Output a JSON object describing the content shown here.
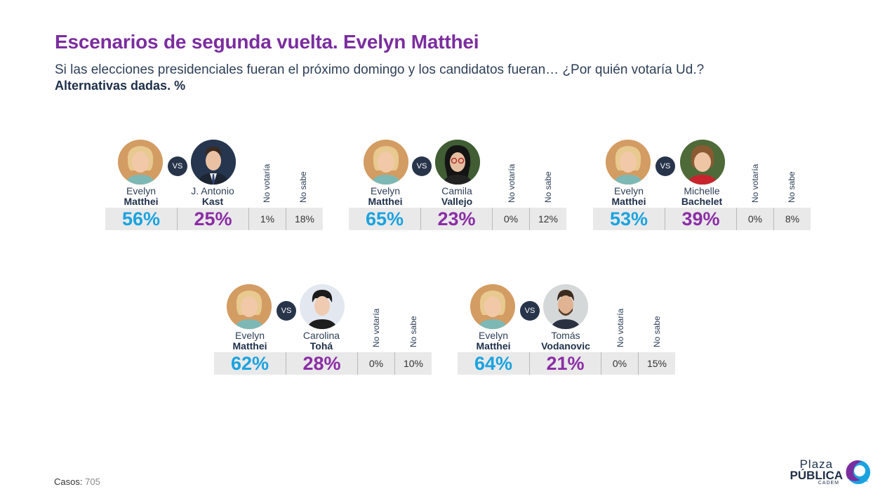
{
  "header": {
    "title": "Escenarios de segunda vuelta. Evelyn Matthei",
    "subtitle": "Si las elecciones presidenciales fueran el próximo domingo y los candidatos fueran… ¿Por quién votaría Ud.?",
    "subtitle2": "Alternativas dadas. %"
  },
  "labels": {
    "vs": "VS",
    "no_votaria": "No votaría",
    "no_sabe": "No sabe"
  },
  "footer": {
    "casos_label": "Casos",
    "casos_sep": ":",
    "casos_value": "705"
  },
  "logo": {
    "line1": "Plaza",
    "line2": "PÚBLICA",
    "line3": "CADEM"
  },
  "colors": {
    "title": "#7b2d9f",
    "matthei": "#1aa3e0",
    "rival": "#8b2da6",
    "bar_bg": "#e9e9e9"
  },
  "chart_data": [
    {
      "type": "table",
      "candidate_a": {
        "first": "Evelyn",
        "last": "Matthei"
      },
      "candidate_b": {
        "first": "J. Antonio",
        "last": "Kast"
      },
      "a_pct": "56%",
      "b_pct": "25%",
      "no_votaria": "1%",
      "no_sabe": "18%"
    },
    {
      "type": "table",
      "candidate_a": {
        "first": "Evelyn",
        "last": "Matthei"
      },
      "candidate_b": {
        "first": "Camila",
        "last": "Vallejo"
      },
      "a_pct": "65%",
      "b_pct": "23%",
      "no_votaria": "0%",
      "no_sabe": "12%"
    },
    {
      "type": "table",
      "candidate_a": {
        "first": "Evelyn",
        "last": "Matthei"
      },
      "candidate_b": {
        "first": "Michelle",
        "last": "Bachelet"
      },
      "a_pct": "53%",
      "b_pct": "39%",
      "no_votaria": "0%",
      "no_sabe": "8%"
    },
    {
      "type": "table",
      "candidate_a": {
        "first": "Evelyn",
        "last": "Matthei"
      },
      "candidate_b": {
        "first": "Carolina",
        "last": "Tohá"
      },
      "a_pct": "62%",
      "b_pct": "28%",
      "no_votaria": "0%",
      "no_sabe": "10%"
    },
    {
      "type": "table",
      "candidate_a": {
        "first": "Evelyn",
        "last": "Matthei"
      },
      "candidate_b": {
        "first": "Tomás",
        "last": "Vodanovic"
      },
      "a_pct": "64%",
      "b_pct": "21%",
      "no_votaria": "0%",
      "no_sabe": "15%"
    }
  ]
}
